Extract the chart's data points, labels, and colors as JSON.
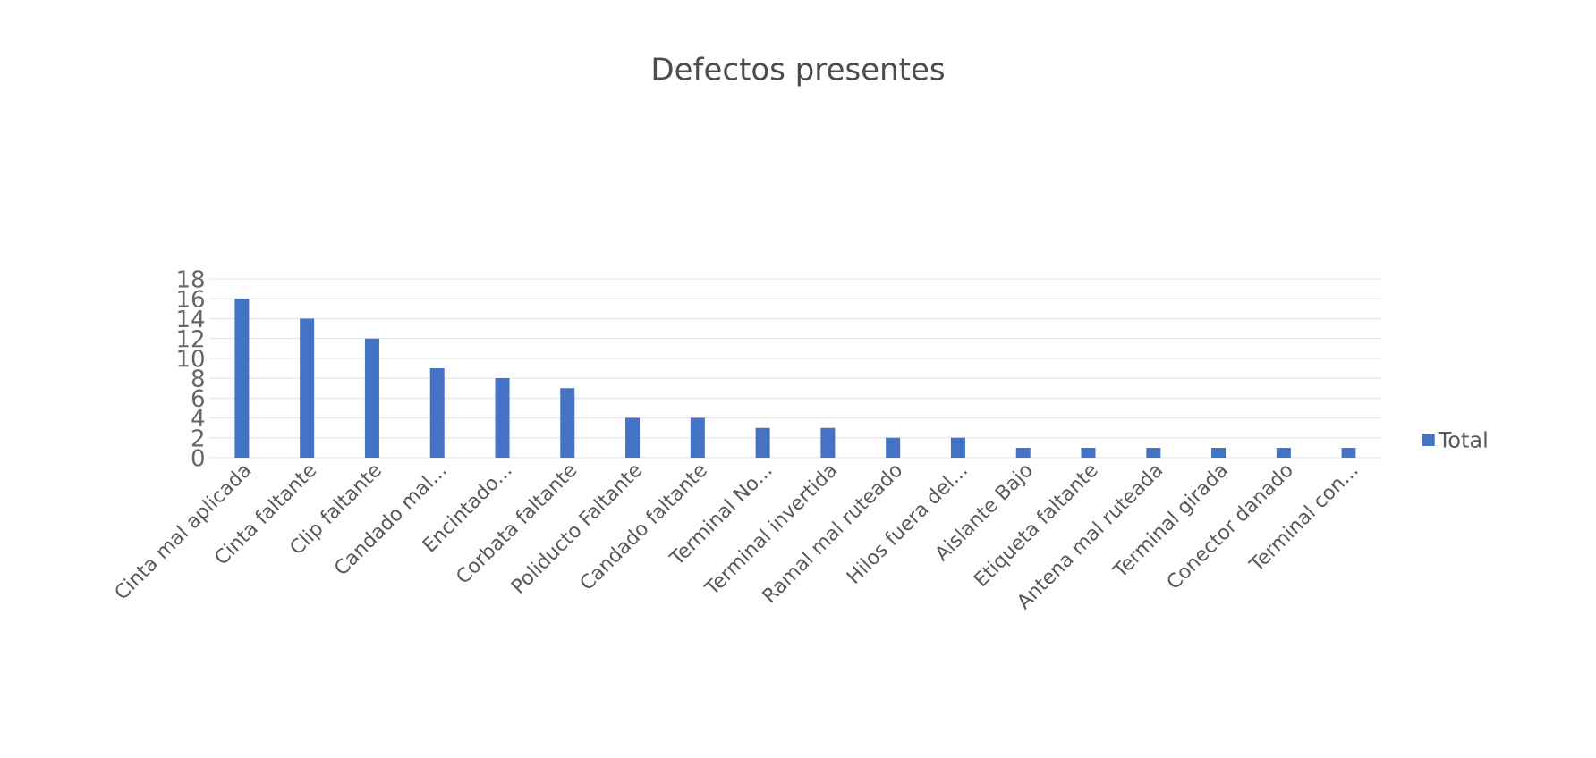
{
  "chart_data": {
    "type": "bar",
    "title": "Defectos presentes",
    "categories": [
      "Cinta mal aplicada",
      "Cinta faltante",
      "Clip faltante",
      "Candado mal...",
      "Encintado...",
      "Corbata faltante",
      "Poliducto Faltante",
      "Candado faltante",
      "Terminal No...",
      "Terminal invertida",
      "Ramal mal ruteado",
      "Hilos fuera del...",
      "Aislante Bajo",
      "Etiqueta faltante",
      "Antena mal ruteada",
      "Terminal girada",
      "Conector danado",
      "Terminal con..."
    ],
    "series": [
      {
        "name": "Total",
        "color": "#4472c4",
        "values": [
          16,
          14,
          12,
          9,
          8,
          7,
          4,
          4,
          3,
          3,
          2,
          2,
          1,
          1,
          1,
          1,
          1,
          1
        ]
      }
    ],
    "ylim": [
      0,
      18
    ],
    "yticks": [
      0,
      2,
      4,
      6,
      8,
      10,
      12,
      14,
      16,
      18
    ],
    "grid": "y",
    "legend": "right"
  }
}
